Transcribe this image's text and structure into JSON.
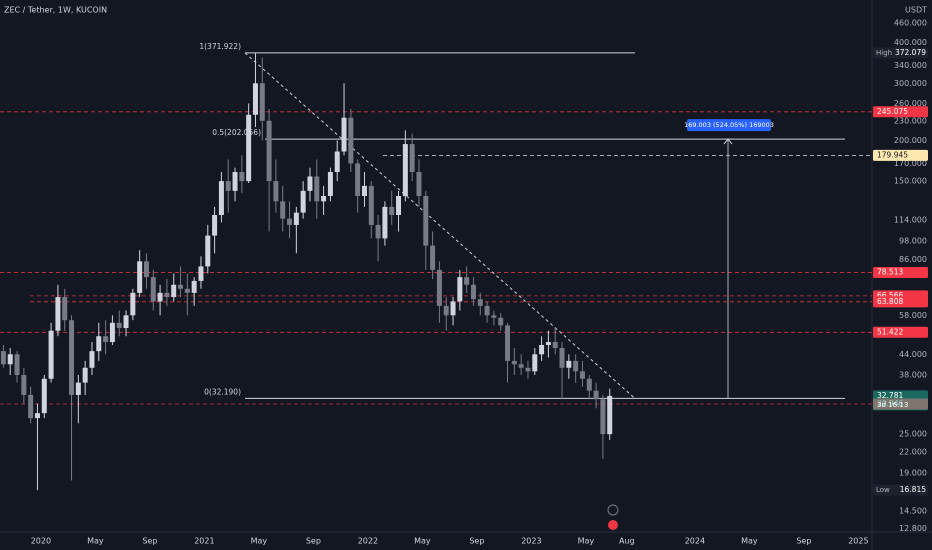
{
  "chart_data": {
    "type": "candlestick",
    "title": "ZEC / Tether, 1W, KUCOIN",
    "currency": "USDT",
    "log_scale": true,
    "up_color": "#d1d4dc",
    "down_color": "#787b86",
    "x": [
      "2019-10",
      "2019-10",
      "2019-11",
      "2019-11",
      "2019-12",
      "2019-12",
      "2020-01",
      "2020-01",
      "2020-02",
      "2020-02",
      "2020-03",
      "2020-03",
      "2020-04",
      "2020-04",
      "2020-05",
      "2020-05",
      "2020-06",
      "2020-06",
      "2020-07",
      "2020-07",
      "2020-08",
      "2020-08",
      "2020-09",
      "2020-09",
      "2020-10",
      "2020-10",
      "2020-11",
      "2020-11",
      "2020-12",
      "2020-12",
      "2021-01",
      "2021-01",
      "2021-02",
      "2021-02",
      "2021-03",
      "2021-03",
      "2021-04",
      "2021-04",
      "2021-05",
      "2021-05",
      "2021-06",
      "2021-06",
      "2021-07",
      "2021-07",
      "2021-08",
      "2021-08",
      "2021-09",
      "2021-09",
      "2021-10",
      "2021-10",
      "2021-11",
      "2021-11",
      "2021-12",
      "2021-12",
      "2022-01",
      "2022-01",
      "2022-02",
      "2022-02",
      "2022-03",
      "2022-03",
      "2022-04",
      "2022-04",
      "2022-05",
      "2022-05",
      "2022-06",
      "2022-06",
      "2022-07",
      "2022-07",
      "2022-08",
      "2022-08",
      "2022-09",
      "2022-09",
      "2022-10",
      "2022-10",
      "2022-11",
      "2022-11",
      "2022-12",
      "2022-12",
      "2023-01",
      "2023-01",
      "2023-02",
      "2023-02",
      "2023-03",
      "2023-03",
      "2023-04",
      "2023-04",
      "2023-05",
      "2023-05",
      "2023-06",
      "2023-06"
    ],
    "open": [
      45,
      41,
      44,
      38,
      33,
      28,
      29,
      37,
      52,
      66,
      56,
      33,
      36,
      40,
      45,
      50,
      48,
      55,
      53,
      58,
      68,
      85,
      76,
      64,
      68,
      66,
      72,
      70,
      68,
      74,
      82,
      102,
      118,
      150,
      140,
      160,
      150,
      240,
      300,
      230,
      150,
      130,
      115,
      110,
      120,
      140,
      155,
      130,
      135,
      160,
      185,
      235,
      170,
      135,
      145,
      110,
      100,
      125,
      118,
      135,
      195,
      160,
      135,
      95,
      80,
      62,
      58,
      64,
      76,
      72,
      65,
      62,
      58,
      57,
      54,
      42,
      41,
      40,
      39,
      44,
      47,
      48,
      46,
      40,
      42,
      39,
      37,
      34,
      32,
      25
    ],
    "high": [
      47,
      46,
      45,
      40,
      35,
      31,
      38,
      55,
      72,
      70,
      58,
      38,
      42,
      48,
      55,
      56,
      58,
      60,
      60,
      70,
      92,
      90,
      80,
      72,
      75,
      78,
      82,
      78,
      76,
      88,
      110,
      125,
      160,
      175,
      165,
      180,
      260,
      372.079,
      360,
      250,
      175,
      145,
      130,
      125,
      150,
      165,
      175,
      145,
      165,
      200,
      300,
      250,
      175,
      160,
      150,
      118,
      130,
      140,
      140,
      215,
      210,
      175,
      140,
      105,
      85,
      66,
      66,
      80,
      82,
      76,
      68,
      64,
      60,
      59,
      55,
      46,
      44,
      42,
      46,
      50,
      52,
      53,
      48,
      44,
      44,
      42,
      38,
      36,
      33,
      34.5
    ],
    "low": [
      40,
      38,
      36,
      31,
      27,
      16.815,
      28,
      36,
      50,
      52,
      18,
      27,
      33,
      38,
      42,
      44,
      47,
      50,
      50,
      56,
      66,
      70,
      60,
      58,
      62,
      64,
      66,
      58,
      62,
      70,
      78,
      90,
      112,
      120,
      130,
      138,
      148,
      220,
      200,
      105,
      120,
      105,
      100,
      90,
      115,
      130,
      115,
      118,
      130,
      150,
      180,
      160,
      120,
      125,
      100,
      85,
      95,
      110,
      105,
      130,
      150,
      125,
      80,
      75,
      55,
      52,
      54,
      60,
      68,
      62,
      58,
      55,
      54,
      52,
      36,
      38,
      38,
      37,
      38,
      42,
      43,
      44,
      32,
      37,
      36,
      35,
      32,
      30,
      21,
      24
    ],
    "close": [
      41,
      44,
      38,
      33,
      28,
      29,
      37,
      52,
      66,
      56,
      33,
      36,
      40,
      45,
      50,
      48,
      55,
      53,
      58,
      68,
      85,
      76,
      64,
      68,
      66,
      72,
      70,
      68,
      74,
      82,
      102,
      118,
      150,
      140,
      160,
      150,
      240,
      300,
      230,
      150,
      130,
      115,
      110,
      120,
      140,
      155,
      130,
      135,
      160,
      185,
      235,
      170,
      135,
      145,
      110,
      100,
      125,
      118,
      135,
      195,
      160,
      135,
      95,
      80,
      62,
      58,
      64,
      76,
      72,
      65,
      62,
      58,
      57,
      54,
      42,
      41,
      40,
      39,
      44,
      47,
      48,
      46,
      40,
      42,
      39,
      37,
      34,
      32,
      25,
      32.781
    ],
    "countdown": "3d 16:13",
    "high_label": "High",
    "low_label": "Low",
    "xlim": [
      "2019-10",
      "2025-02"
    ],
    "xticks": [
      {
        "value": "2020-01",
        "label": "2020"
      },
      {
        "value": "2020-05",
        "label": "May"
      },
      {
        "value": "2020-09",
        "label": "Sep"
      },
      {
        "value": "2021-01",
        "label": "2021"
      },
      {
        "value": "2021-05",
        "label": "May"
      },
      {
        "value": "2021-09",
        "label": "Sep"
      },
      {
        "value": "2022-01",
        "label": "2022"
      },
      {
        "value": "2022-05",
        "label": "May"
      },
      {
        "value": "2022-09",
        "label": "Sep"
      },
      {
        "value": "2023-01",
        "label": "2023"
      },
      {
        "value": "2023-05",
        "label": "May"
      },
      {
        "value": "2023-08",
        "label": "Aug"
      },
      {
        "value": "2024-01",
        "label": "2024"
      },
      {
        "value": "2024-05",
        "label": "May"
      },
      {
        "value": "2024-09",
        "label": "Sep"
      },
      {
        "value": "2025-01",
        "label": "2025"
      }
    ],
    "ylim": [
      12.5,
      541
    ],
    "yticks": [
      {
        "value": 460,
        "label": "460.000"
      },
      {
        "value": 400,
        "label": "400.000"
      },
      {
        "value": 340,
        "label": "340.000"
      },
      {
        "value": 300,
        "label": "300.000"
      },
      {
        "value": 260,
        "label": "260.000"
      },
      {
        "value": 230,
        "label": "230.000"
      },
      {
        "value": 200,
        "label": "200.000"
      },
      {
        "value": 170,
        "label": "170.000"
      },
      {
        "value": 150,
        "label": "150.000"
      },
      {
        "value": 114,
        "label": "114.000"
      },
      {
        "value": 98,
        "label": "98.000"
      },
      {
        "value": 86,
        "label": "86.000"
      },
      {
        "value": 58,
        "label": "58.000"
      },
      {
        "value": 44,
        "label": "44.000"
      },
      {
        "value": 38,
        "label": "38.000"
      },
      {
        "value": 25,
        "label": "25.000"
      },
      {
        "value": 22,
        "label": "22.000"
      },
      {
        "value": 19,
        "label": "19.000"
      },
      {
        "value": 14.5,
        "label": "14.500"
      },
      {
        "value": 12.8,
        "label": "12.800"
      }
    ],
    "price_lines": [
      {
        "value": 245.075,
        "color": "#f23645"
      },
      {
        "value": 179.945,
        "color": "#ffe7b0"
      },
      {
        "value": 78.513,
        "color": "#f23645"
      },
      {
        "value": 66.566,
        "color": "#f23645"
      },
      {
        "value": 63.808,
        "color": "#f23645"
      },
      {
        "value": 51.422,
        "color": "#f23645"
      },
      {
        "value": 30.946,
        "color": "#f23645"
      }
    ],
    "fib_levels": [
      {
        "value": 371.922,
        "label": "1(371.922)"
      },
      {
        "value": 202.056,
        "label": "0.5(202.056)"
      },
      {
        "value": 32.19,
        "label": "0(32.190)"
      }
    ],
    "measure_label": "169.003 (524.05%) 169003"
  }
}
